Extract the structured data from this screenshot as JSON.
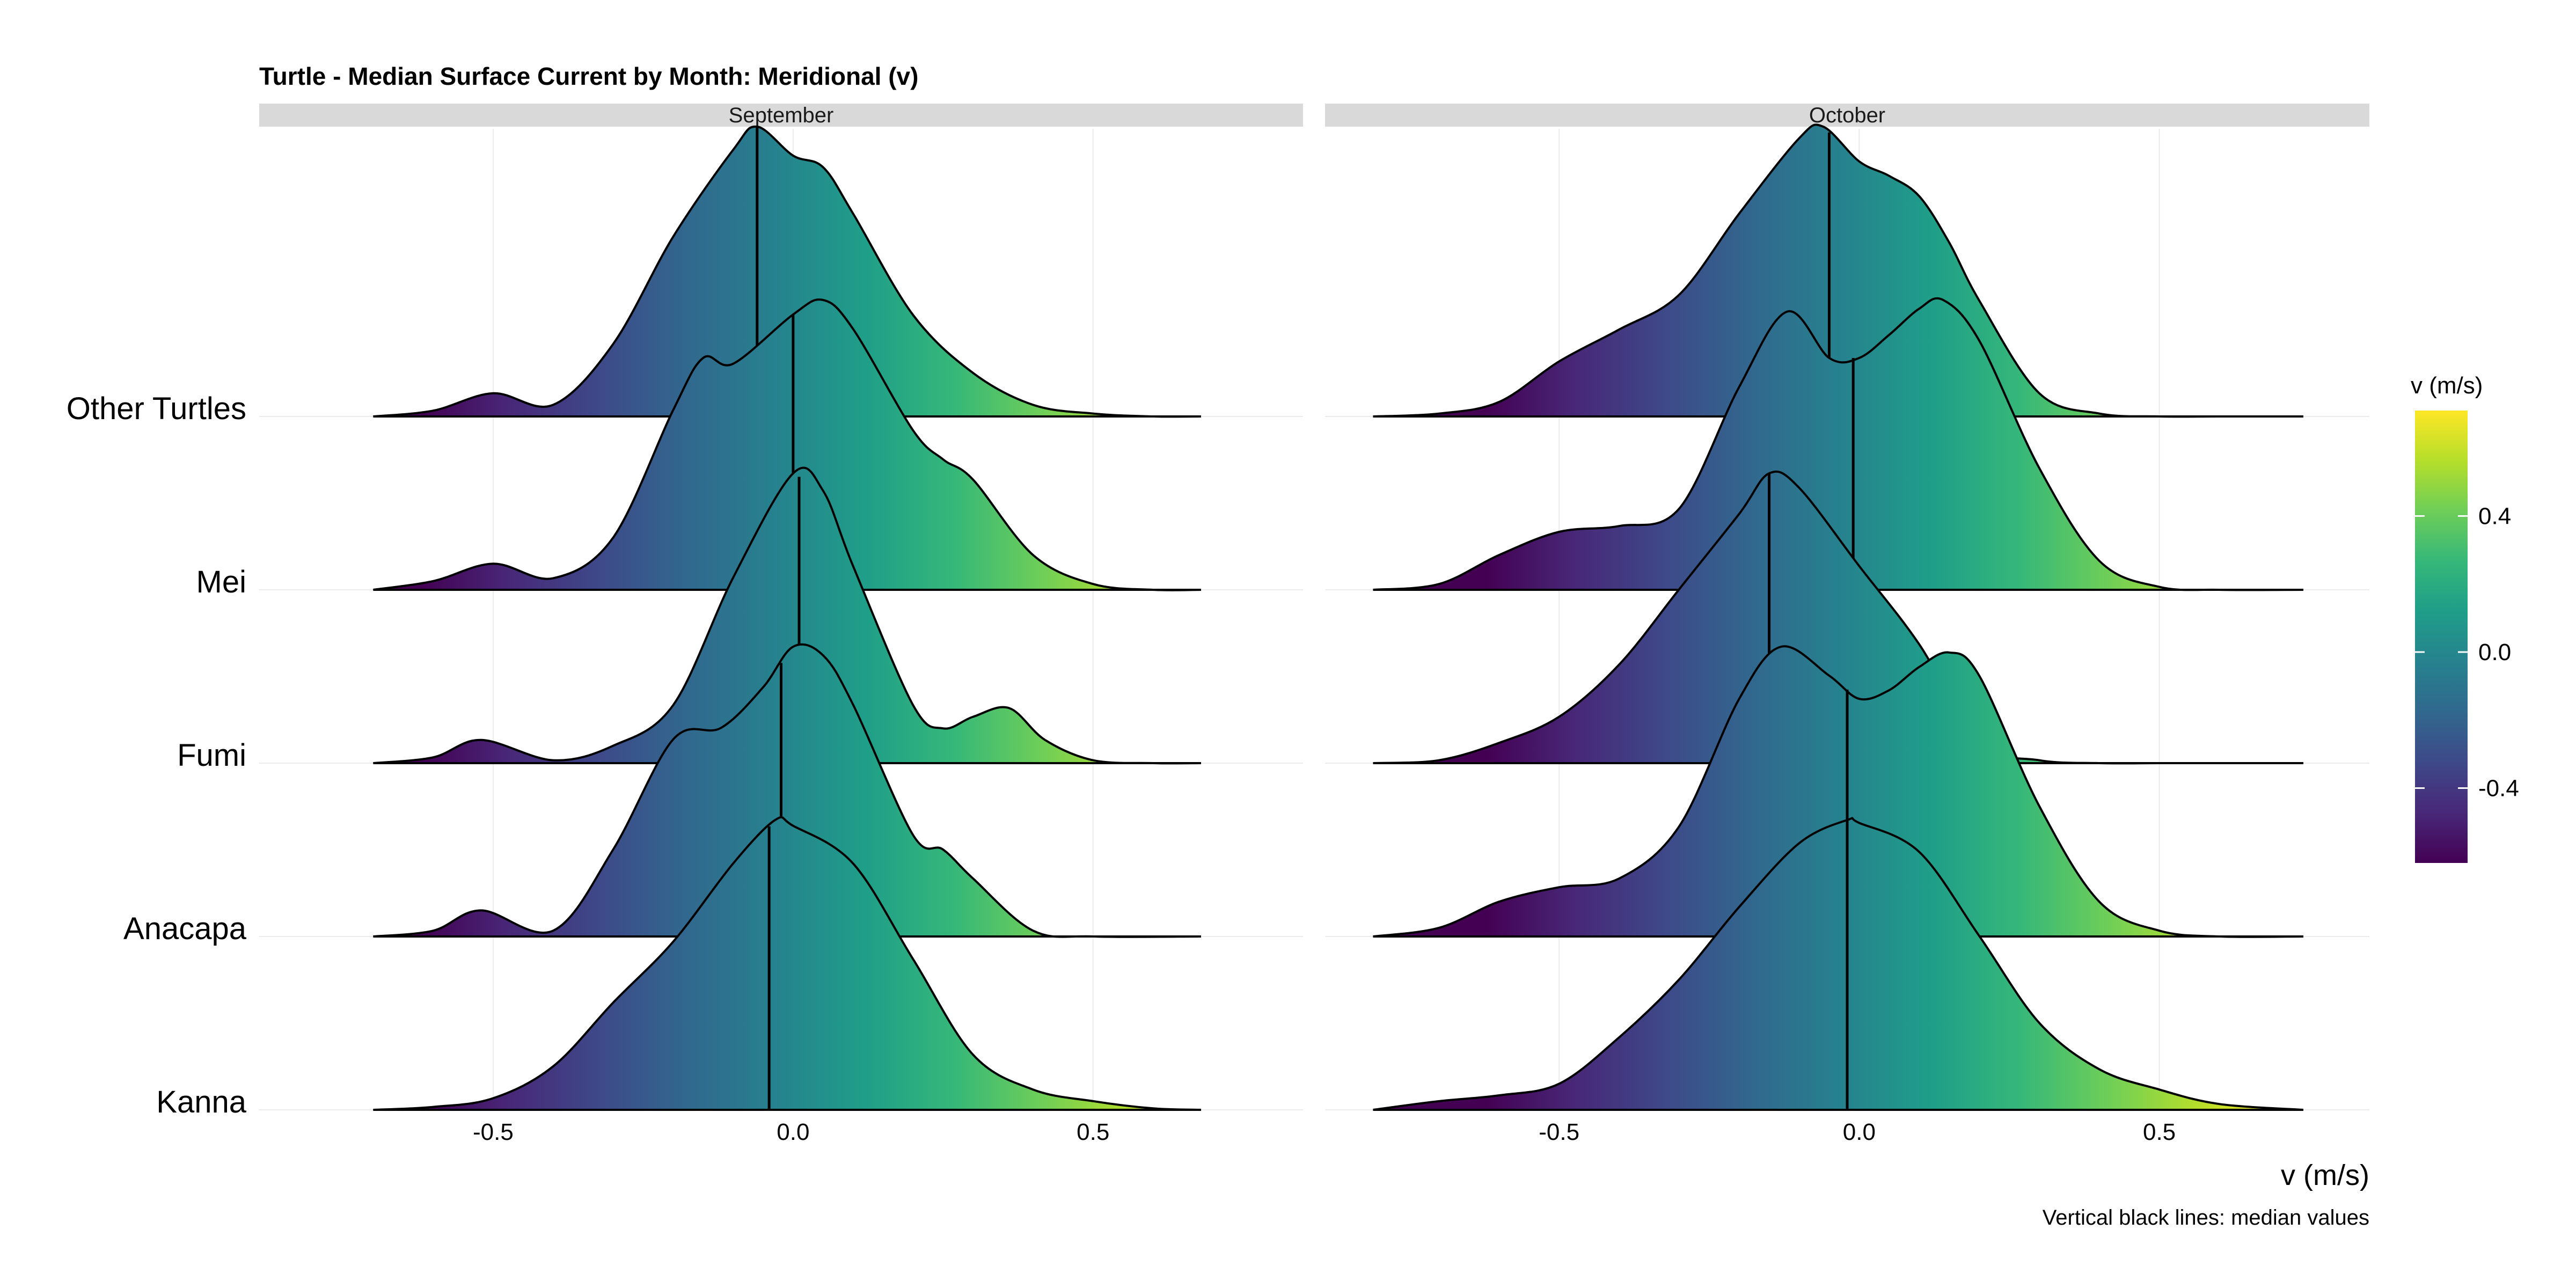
{
  "chart_data": {
    "type": "ridgeline",
    "title": "Turtle - Median Surface Current by Month: Meridional (v)",
    "xlabel": "v (m/s)",
    "caption": "Vertical black lines: median values",
    "facets": [
      "September",
      "October"
    ],
    "categories": [
      "Other Turtles",
      "Mei",
      "Fumi",
      "Anacapa",
      "Kanna"
    ],
    "x_ticks": [
      -0.5,
      0.0,
      0.5
    ],
    "x_tick_labels": [
      "-0.5",
      "0.0",
      "0.5"
    ],
    "xlim": [
      -0.89,
      0.85
    ],
    "grid": true,
    "legend": {
      "title": "v (m/s)",
      "position": "right",
      "range": [
        -0.62,
        0.71
      ],
      "ticks": [
        -0.4,
        0.0,
        0.4
      ],
      "tick_labels": [
        "-0.4",
        "0.0",
        "0.4"
      ],
      "colormap": "viridis",
      "colors": [
        "#440154",
        "#482878",
        "#3e4989",
        "#31688e",
        "#26828e",
        "#1f9e89",
        "#35b779",
        "#6ece58",
        "#b5de2b",
        "#fde725"
      ]
    },
    "panels": [
      {
        "facet": "September",
        "series": [
          {
            "name": "Other Turtles",
            "median": -0.06,
            "xrange": [
              -0.7,
              0.68
            ],
            "x": [
              -0.7,
              -0.6,
              -0.5,
              -0.4,
              -0.3,
              -0.2,
              -0.1,
              -0.06,
              0.0,
              0.05,
              0.1,
              0.2,
              0.3,
              0.4,
              0.5,
              0.6,
              0.68
            ],
            "y": [
              0.0,
              0.02,
              0.08,
              0.04,
              0.25,
              0.62,
              0.92,
              1.0,
              0.9,
              0.86,
              0.7,
              0.35,
              0.15,
              0.04,
              0.01,
              0.0,
              0.0
            ]
          },
          {
            "name": "Mei",
            "median": 0.0,
            "xrange": [
              -0.7,
              0.68
            ],
            "x": [
              -0.7,
              -0.6,
              -0.5,
              -0.4,
              -0.3,
              -0.2,
              -0.15,
              -0.1,
              0.0,
              0.05,
              0.1,
              0.2,
              0.25,
              0.3,
              0.4,
              0.5,
              0.6,
              0.68
            ],
            "y": [
              0.0,
              0.03,
              0.09,
              0.04,
              0.18,
              0.62,
              0.8,
              0.78,
              0.95,
              1.0,
              0.9,
              0.55,
              0.45,
              0.38,
              0.12,
              0.02,
              0.0,
              0.0
            ]
          },
          {
            "name": "Fumi",
            "median": 0.01,
            "xrange": [
              -0.7,
              0.68
            ],
            "x": [
              -0.7,
              -0.6,
              -0.52,
              -0.4,
              -0.3,
              -0.2,
              -0.1,
              0.0,
              0.05,
              0.1,
              0.2,
              0.25,
              0.3,
              0.36,
              0.42,
              0.5,
              0.6,
              0.68
            ],
            "y": [
              0.0,
              0.02,
              0.08,
              0.01,
              0.06,
              0.2,
              0.64,
              1.0,
              0.94,
              0.68,
              0.2,
              0.12,
              0.16,
              0.19,
              0.08,
              0.01,
              0.0,
              0.0
            ]
          },
          {
            "name": "Anacapa",
            "median": -0.02,
            "xrange": [
              -0.7,
              0.68
            ],
            "x": [
              -0.7,
              -0.6,
              -0.52,
              -0.4,
              -0.3,
              -0.2,
              -0.12,
              -0.05,
              0.0,
              0.05,
              0.1,
              0.2,
              0.25,
              0.3,
              0.4,
              0.5,
              0.68
            ],
            "y": [
              0.0,
              0.02,
              0.09,
              0.02,
              0.3,
              0.68,
              0.72,
              0.86,
              1.0,
              0.97,
              0.8,
              0.35,
              0.3,
              0.2,
              0.02,
              0.0,
              0.0
            ]
          },
          {
            "name": "Kanna",
            "median": -0.04,
            "xrange": [
              -0.7,
              0.68
            ],
            "x": [
              -0.7,
              -0.6,
              -0.5,
              -0.4,
              -0.3,
              -0.2,
              -0.1,
              -0.03,
              0.0,
              0.1,
              0.2,
              0.3,
              0.4,
              0.5,
              0.6,
              0.68
            ],
            "y": [
              0.0,
              0.01,
              0.04,
              0.15,
              0.37,
              0.58,
              0.85,
              1.0,
              0.98,
              0.85,
              0.52,
              0.19,
              0.07,
              0.03,
              0.005,
              0.0
            ]
          }
        ]
      },
      {
        "facet": "October",
        "series": [
          {
            "name": "Other Turtles",
            "median": -0.05,
            "xrange": [
              -0.81,
              0.74
            ],
            "x": [
              -0.81,
              -0.7,
              -0.6,
              -0.5,
              -0.4,
              -0.3,
              -0.2,
              -0.1,
              -0.06,
              0.0,
              0.05,
              0.1,
              0.15,
              0.2,
              0.3,
              0.4,
              0.5,
              0.6,
              0.74
            ],
            "y": [
              0.0,
              0.01,
              0.05,
              0.19,
              0.3,
              0.42,
              0.7,
              0.96,
              1.0,
              0.88,
              0.83,
              0.76,
              0.6,
              0.4,
              0.08,
              0.01,
              0.0,
              0.0,
              0.0
            ]
          },
          {
            "name": "Mei",
            "median": -0.01,
            "xrange": [
              -0.81,
              0.74
            ],
            "x": [
              -0.81,
              -0.7,
              -0.6,
              -0.5,
              -0.4,
              -0.3,
              -0.2,
              -0.12,
              -0.05,
              0.0,
              0.05,
              0.1,
              0.14,
              0.2,
              0.3,
              0.4,
              0.5,
              0.6,
              0.74
            ],
            "y": [
              0.0,
              0.02,
              0.12,
              0.2,
              0.22,
              0.28,
              0.7,
              0.96,
              0.8,
              0.8,
              0.88,
              0.97,
              1.0,
              0.86,
              0.42,
              0.1,
              0.01,
              0.0,
              0.0
            ]
          },
          {
            "name": "Fumi",
            "median": -0.15,
            "xrange": [
              -0.81,
              0.74
            ],
            "x": [
              -0.81,
              -0.7,
              -0.6,
              -0.5,
              -0.4,
              -0.3,
              -0.2,
              -0.15,
              -0.1,
              0.0,
              0.1,
              0.2,
              0.3,
              0.4,
              0.5,
              0.6,
              0.74
            ],
            "y": [
              0.0,
              0.01,
              0.07,
              0.16,
              0.34,
              0.6,
              0.86,
              1.0,
              0.95,
              0.68,
              0.41,
              0.07,
              0.01,
              0.0,
              0.0,
              0.0,
              0.0
            ]
          },
          {
            "name": "Anacapa",
            "median": -0.02,
            "xrange": [
              -0.81,
              0.74
            ],
            "x": [
              -0.81,
              -0.7,
              -0.6,
              -0.5,
              -0.4,
              -0.3,
              -0.2,
              -0.13,
              -0.05,
              0.0,
              0.05,
              0.1,
              0.15,
              0.2,
              0.3,
              0.4,
              0.5,
              0.6,
              0.74
            ],
            "y": [
              0.0,
              0.03,
              0.12,
              0.17,
              0.2,
              0.38,
              0.82,
              1.0,
              0.9,
              0.82,
              0.85,
              0.93,
              0.98,
              0.9,
              0.45,
              0.12,
              0.02,
              0.0,
              0.0
            ]
          },
          {
            "name": "Kanna",
            "median": -0.02,
            "xrange": [
              -0.81,
              0.74
            ],
            "x": [
              -0.81,
              -0.7,
              -0.6,
              -0.5,
              -0.4,
              -0.3,
              -0.2,
              -0.1,
              -0.02,
              0.0,
              0.1,
              0.2,
              0.3,
              0.4,
              0.5,
              0.6,
              0.74
            ],
            "y": [
              0.0,
              0.03,
              0.05,
              0.09,
              0.25,
              0.45,
              0.7,
              0.92,
              1.0,
              0.99,
              0.89,
              0.6,
              0.3,
              0.14,
              0.07,
              0.02,
              0.0
            ]
          }
        ]
      }
    ]
  }
}
